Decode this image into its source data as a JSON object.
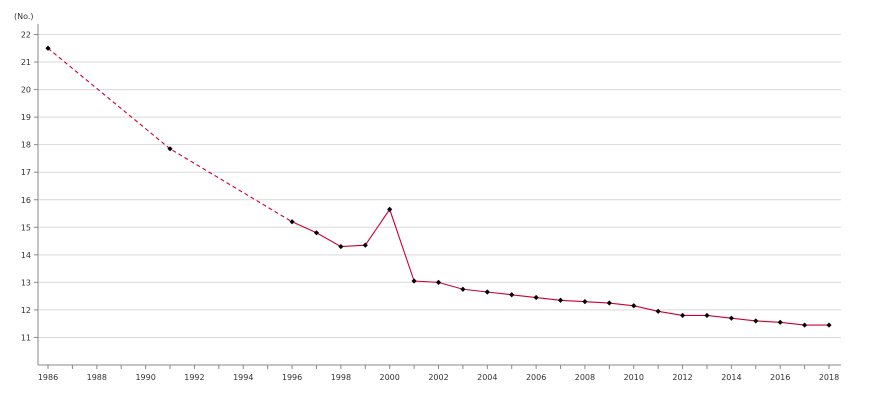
{
  "chart_data": {
    "type": "line",
    "y_unit_label": "(No.)",
    "xlim": [
      1986,
      2018
    ],
    "ylim": [
      10,
      22
    ],
    "y_ticks": [
      11,
      12,
      13,
      14,
      15,
      16,
      17,
      18,
      19,
      20,
      21,
      22
    ],
    "x_ticks": [
      1986,
      1988,
      1990,
      1992,
      1994,
      1996,
      1998,
      2000,
      2002,
      2004,
      2006,
      2008,
      2010,
      2012,
      2014,
      2016,
      2018
    ],
    "grid": "horizontal",
    "series": [
      {
        "color": "#cc0033",
        "marker_color": "#000000",
        "x": [
          1986,
          1991,
          1996,
          1997,
          1998,
          1999,
          2000,
          2001,
          2002,
          2003,
          2004,
          2005,
          2006,
          2007,
          2008,
          2009,
          2010,
          2011,
          2012,
          2013,
          2014,
          2015,
          2016,
          2017,
          2018
        ],
        "y": [
          21.5,
          17.85,
          15.2,
          14.8,
          14.3,
          14.35,
          15.65,
          13.05,
          13.0,
          12.75,
          12.65,
          12.55,
          12.45,
          12.35,
          12.3,
          12.25,
          12.15,
          11.95,
          11.8,
          11.8,
          11.7,
          11.6,
          11.55,
          11.45,
          11.45
        ],
        "dashed_until": 1996
      }
    ]
  }
}
